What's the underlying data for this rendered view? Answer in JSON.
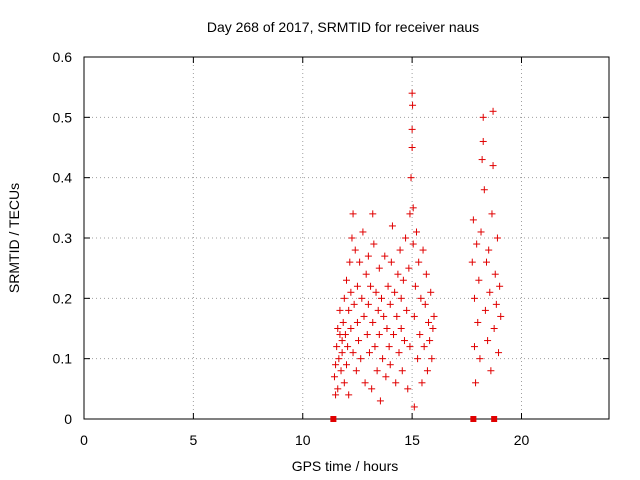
{
  "chart_data": {
    "type": "scatter",
    "title": "Day 268 of 2017, SRMTID for receiver naus",
    "xlabel": "GPS time / hours",
    "ylabel": "SRMTID / TECUs",
    "xlim": [
      0,
      24
    ],
    "ylim": [
      0,
      0.6
    ],
    "xticks": [
      "0",
      "5",
      "10",
      "15",
      "20"
    ],
    "yticks": [
      "0",
      "0.1",
      "0.2",
      "0.3",
      "0.4",
      "0.5",
      "0.6"
    ],
    "grid": true,
    "marker_color": "#e00000",
    "series": [
      {
        "marker": "plus",
        "points": [
          [
            11.45,
            0.07
          ],
          [
            11.5,
            0.09
          ],
          [
            11.5,
            0.04
          ],
          [
            11.55,
            0.12
          ],
          [
            11.6,
            0.15
          ],
          [
            11.6,
            0.05
          ],
          [
            11.65,
            0.1
          ],
          [
            11.7,
            0.14
          ],
          [
            11.7,
            0.18
          ],
          [
            11.75,
            0.08
          ],
          [
            11.8,
            0.13
          ],
          [
            11.8,
            0.11
          ],
          [
            11.85,
            0.16
          ],
          [
            11.9,
            0.06
          ],
          [
            11.9,
            0.2
          ],
          [
            11.95,
            0.14
          ],
          [
            12.0,
            0.09
          ],
          [
            12.0,
            0.23
          ],
          [
            12.05,
            0.12
          ],
          [
            12.1,
            0.18
          ],
          [
            12.1,
            0.04
          ],
          [
            12.15,
            0.26
          ],
          [
            12.2,
            0.15
          ],
          [
            12.2,
            0.21
          ],
          [
            12.25,
            0.3
          ],
          [
            12.3,
            0.34
          ],
          [
            12.3,
            0.11
          ],
          [
            12.35,
            0.19
          ],
          [
            12.4,
            0.28
          ],
          [
            12.45,
            0.08
          ],
          [
            12.5,
            0.22
          ],
          [
            12.5,
            0.16
          ],
          [
            12.55,
            0.13
          ],
          [
            12.6,
            0.26
          ],
          [
            12.65,
            0.1
          ],
          [
            12.7,
            0.2
          ],
          [
            12.75,
            0.31
          ],
          [
            12.8,
            0.17
          ],
          [
            12.85,
            0.06
          ],
          [
            12.9,
            0.24
          ],
          [
            12.95,
            0.14
          ],
          [
            13.0,
            0.27
          ],
          [
            13.0,
            0.19
          ],
          [
            13.05,
            0.11
          ],
          [
            13.1,
            0.22
          ],
          [
            13.15,
            0.05
          ],
          [
            13.2,
            0.34
          ],
          [
            13.2,
            0.16
          ],
          [
            13.25,
            0.29
          ],
          [
            13.3,
            0.12
          ],
          [
            13.35,
            0.21
          ],
          [
            13.4,
            0.08
          ],
          [
            13.45,
            0.18
          ],
          [
            13.5,
            0.25
          ],
          [
            13.5,
            0.14
          ],
          [
            13.55,
            0.03
          ],
          [
            13.6,
            0.2
          ],
          [
            13.65,
            0.1
          ],
          [
            13.7,
            0.17
          ],
          [
            13.75,
            0.27
          ],
          [
            13.8,
            0.07
          ],
          [
            13.85,
            0.15
          ],
          [
            13.9,
            0.22
          ],
          [
            13.95,
            0.12
          ],
          [
            14.0,
            0.19
          ],
          [
            14.0,
            0.09
          ],
          [
            14.05,
            0.26
          ],
          [
            14.1,
            0.32
          ],
          [
            14.15,
            0.14
          ],
          [
            14.2,
            0.21
          ],
          [
            14.25,
            0.06
          ],
          [
            14.3,
            0.17
          ],
          [
            14.35,
            0.24
          ],
          [
            14.4,
            0.11
          ],
          [
            14.45,
            0.28
          ],
          [
            14.5,
            0.15
          ],
          [
            14.5,
            0.2
          ],
          [
            14.55,
            0.08
          ],
          [
            14.6,
            0.23
          ],
          [
            14.65,
            0.13
          ],
          [
            14.7,
            0.3
          ],
          [
            14.75,
            0.18
          ],
          [
            14.8,
            0.05
          ],
          [
            14.85,
            0.25
          ],
          [
            14.9,
            0.34
          ],
          [
            14.9,
            0.12
          ],
          [
            14.95,
            0.4
          ],
          [
            15.0,
            0.54
          ],
          [
            15.0,
            0.48
          ],
          [
            15.02,
            0.52
          ],
          [
            15.0,
            0.45
          ],
          [
            15.05,
            0.35
          ],
          [
            15.05,
            0.29
          ],
          [
            15.1,
            0.17
          ],
          [
            15.1,
            0.02
          ],
          [
            15.15,
            0.22
          ],
          [
            15.2,
            0.31
          ],
          [
            15.25,
            0.1
          ],
          [
            15.3,
            0.26
          ],
          [
            15.35,
            0.14
          ],
          [
            15.4,
            0.2
          ],
          [
            15.45,
            0.06
          ],
          [
            15.5,
            0.28
          ],
          [
            15.55,
            0.12
          ],
          [
            15.6,
            0.19
          ],
          [
            15.65,
            0.24
          ],
          [
            15.7,
            0.08
          ],
          [
            15.75,
            0.16
          ],
          [
            15.8,
            0.13
          ],
          [
            15.85,
            0.21
          ],
          [
            15.9,
            0.1
          ],
          [
            15.95,
            0.15
          ],
          [
            16.0,
            0.17
          ],
          [
            17.75,
            0.26
          ],
          [
            17.8,
            0.33
          ],
          [
            17.85,
            0.12
          ],
          [
            17.85,
            0.2
          ],
          [
            17.9,
            0.06
          ],
          [
            17.95,
            0.29
          ],
          [
            18.0,
            0.16
          ],
          [
            18.05,
            0.23
          ],
          [
            18.1,
            0.1
          ],
          [
            18.15,
            0.31
          ],
          [
            18.2,
            0.43
          ],
          [
            18.25,
            0.5
          ],
          [
            18.25,
            0.46
          ],
          [
            18.3,
            0.38
          ],
          [
            18.35,
            0.18
          ],
          [
            18.4,
            0.26
          ],
          [
            18.45,
            0.13
          ],
          [
            18.5,
            0.28
          ],
          [
            18.55,
            0.21
          ],
          [
            18.6,
            0.08
          ],
          [
            18.65,
            0.34
          ],
          [
            18.7,
            0.51
          ],
          [
            18.7,
            0.42
          ],
          [
            18.75,
            0.15
          ],
          [
            18.8,
            0.24
          ],
          [
            18.85,
            0.19
          ],
          [
            18.9,
            0.3
          ],
          [
            18.95,
            0.11
          ],
          [
            19.0,
            0.22
          ],
          [
            19.05,
            0.17
          ]
        ]
      },
      {
        "marker": "square",
        "points": [
          [
            11.4,
            0
          ],
          [
            17.8,
            0
          ],
          [
            18.75,
            0
          ]
        ]
      }
    ]
  }
}
